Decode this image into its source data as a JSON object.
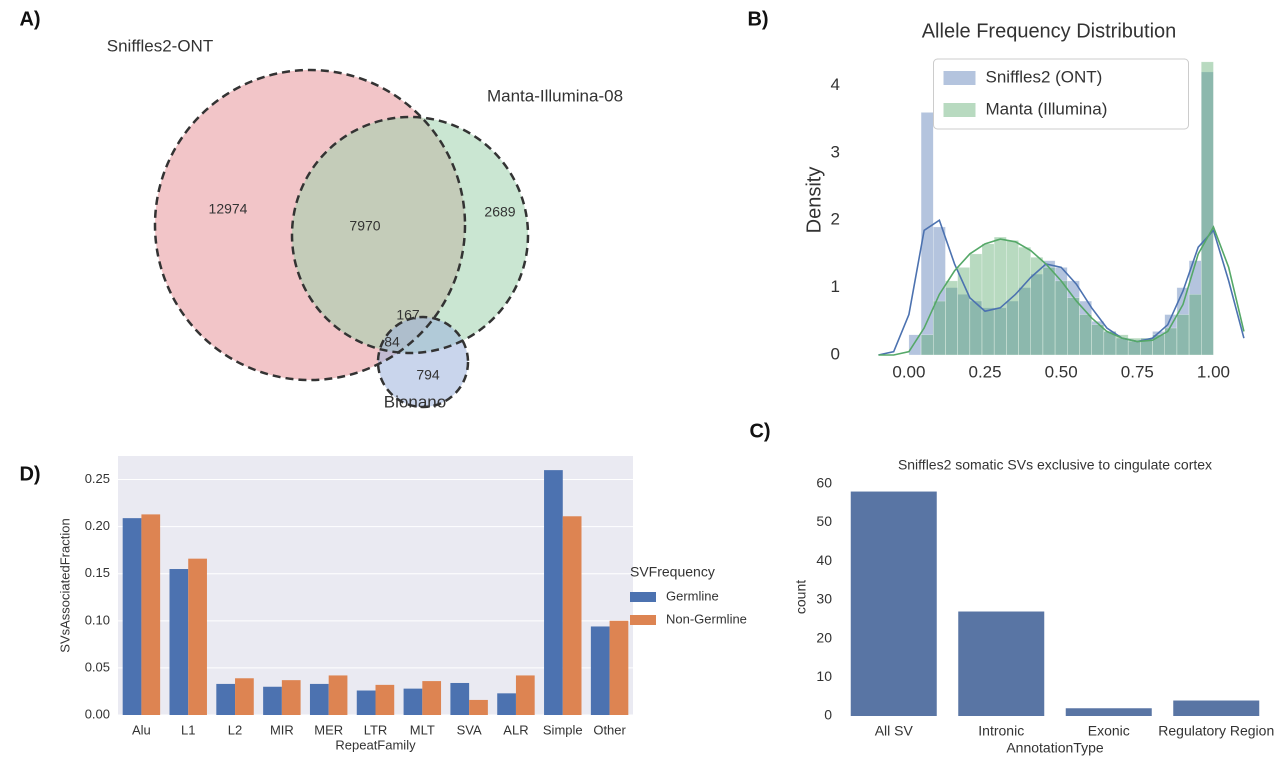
{
  "chart_data": [
    {
      "type": "venn",
      "panel": "A)",
      "sets": [
        {
          "name": "Sniffles2-ONT",
          "color": "#e8959b"
        },
        {
          "name": "Manta-Illumina-08",
          "color": "#9fd2ad"
        },
        {
          "name": "Bionano",
          "color": "#9db3dd"
        }
      ],
      "regions": [
        {
          "sets": [
            0
          ],
          "value": 12974
        },
        {
          "sets": [
            0,
            1
          ],
          "value": 7970
        },
        {
          "sets": [
            1
          ],
          "value": 2689
        },
        {
          "sets": [
            0,
            1,
            2
          ],
          "value": 167
        },
        {
          "sets": [
            0,
            2
          ],
          "value": 84
        },
        {
          "sets": [
            2
          ],
          "value": 794
        }
      ]
    },
    {
      "type": "histogram",
      "panel": "B)",
      "title": "Allele Frequency Distribution",
      "ylabel": "Density",
      "xlim": [
        -0.2,
        1.12
      ],
      "ylim": [
        0,
        4.6
      ],
      "xticks": [
        {
          "value": 0,
          "label": "0.00"
        },
        {
          "value": 0.25,
          "label": "0.25"
        },
        {
          "value": 0.5,
          "label": "0.50"
        },
        {
          "value": 0.75,
          "label": "0.75"
        },
        {
          "value": 1,
          "label": "1.00"
        }
      ],
      "yticks": [
        0,
        1,
        2,
        3,
        4
      ],
      "bins": [
        0,
        0.04,
        0.08,
        0.12,
        0.16,
        0.2,
        0.24,
        0.28,
        0.32,
        0.36,
        0.4,
        0.44,
        0.48,
        0.52,
        0.56,
        0.6,
        0.64,
        0.68,
        0.72,
        0.76,
        0.8,
        0.84,
        0.88,
        0.92,
        0.96,
        1.0
      ],
      "kde_x": [
        -0.1,
        -0.05,
        0,
        0.05,
        0.1,
        0.15,
        0.2,
        0.25,
        0.3,
        0.35,
        0.4,
        0.45,
        0.5,
        0.55,
        0.6,
        0.65,
        0.7,
        0.75,
        0.8,
        0.85,
        0.9,
        0.95,
        1.0,
        1.05,
        1.1
      ],
      "legend": "upper center",
      "series": [
        {
          "name": "Sniffles2 (ONT)",
          "color": "#4c72b0",
          "values": [
            0.3,
            3.6,
            1.9,
            1.0,
            0.9,
            0.8,
            0.7,
            0.7,
            0.8,
            1.0,
            1.2,
            1.4,
            1.3,
            1.1,
            0.8,
            0.5,
            0.35,
            0.25,
            0.2,
            0.25,
            0.35,
            0.6,
            1.0,
            1.4,
            4.2
          ],
          "kde": [
            0.0,
            0.05,
            0.6,
            1.85,
            2.0,
            1.35,
            0.85,
            0.65,
            0.7,
            0.9,
            1.15,
            1.35,
            1.3,
            1.05,
            0.7,
            0.4,
            0.25,
            0.2,
            0.25,
            0.45,
            0.95,
            1.6,
            1.85,
            1.1,
            0.25
          ]
        },
        {
          "name": "Manta (Illumina)",
          "color": "#55a868",
          "values": [
            0.0,
            0.3,
            0.8,
            1.1,
            1.3,
            1.5,
            1.65,
            1.75,
            1.7,
            1.6,
            1.45,
            1.3,
            1.1,
            0.85,
            0.6,
            0.45,
            0.35,
            0.3,
            0.25,
            0.25,
            0.3,
            0.4,
            0.6,
            0.9,
            4.35
          ],
          "kde": [
            0.0,
            0.0,
            0.05,
            0.4,
            0.9,
            1.25,
            1.5,
            1.65,
            1.72,
            1.68,
            1.55,
            1.35,
            1.1,
            0.8,
            0.55,
            0.35,
            0.25,
            0.2,
            0.22,
            0.35,
            0.75,
            1.5,
            1.9,
            1.3,
            0.35
          ]
        }
      ]
    },
    {
      "type": "bar",
      "panel": "C)",
      "title": "Sniffles2 somatic SVs exclusive to cingulate cortex",
      "xlabel": "AnnotationType",
      "ylabel": "count",
      "background": "#ffffff",
      "grid": false,
      "categories": [
        "All SV",
        "Intronic",
        "Exonic",
        "Regulatory Region"
      ],
      "values": [
        58,
        27,
        2,
        4
      ],
      "color": "#5975a4",
      "ylim": [
        0,
        61.5
      ],
      "yticks": [
        0,
        10,
        20,
        30,
        40,
        50,
        60
      ]
    },
    {
      "type": "bar",
      "panel": "D)",
      "xlabel": "RepeatFamily",
      "ylabel": "SVsAssociatedFraction",
      "background": "#eaeaf2",
      "grid": true,
      "legend": "outside right",
      "legend_title": "SVFrequency",
      "categories": [
        "Alu",
        "L1",
        "L2",
        "MIR",
        "MER",
        "LTR",
        "MLT",
        "SVA",
        "ALR",
        "Simple",
        "Other"
      ],
      "series": [
        {
          "name": "Germline",
          "color": "#4c72b0",
          "values": [
            0.209,
            0.155,
            0.033,
            0.03,
            0.033,
            0.026,
            0.028,
            0.034,
            0.023,
            0.26,
            0.094
          ]
        },
        {
          "name": "Non-Germline",
          "color": "#dd8452",
          "values": [
            0.213,
            0.166,
            0.039,
            0.037,
            0.042,
            0.032,
            0.036,
            0.016,
            0.042,
            0.211,
            0.1
          ]
        }
      ],
      "ylim": [
        0,
        0.275
      ],
      "yticks": [
        {
          "value": 0,
          "label": "0.00"
        },
        {
          "value": 0.05,
          "label": "0.05"
        },
        {
          "value": 0.1,
          "label": "0.10"
        },
        {
          "value": 0.15,
          "label": "0.15"
        },
        {
          "value": 0.2,
          "label": "0.20"
        },
        {
          "value": 0.25,
          "label": "0.25"
        }
      ]
    }
  ]
}
